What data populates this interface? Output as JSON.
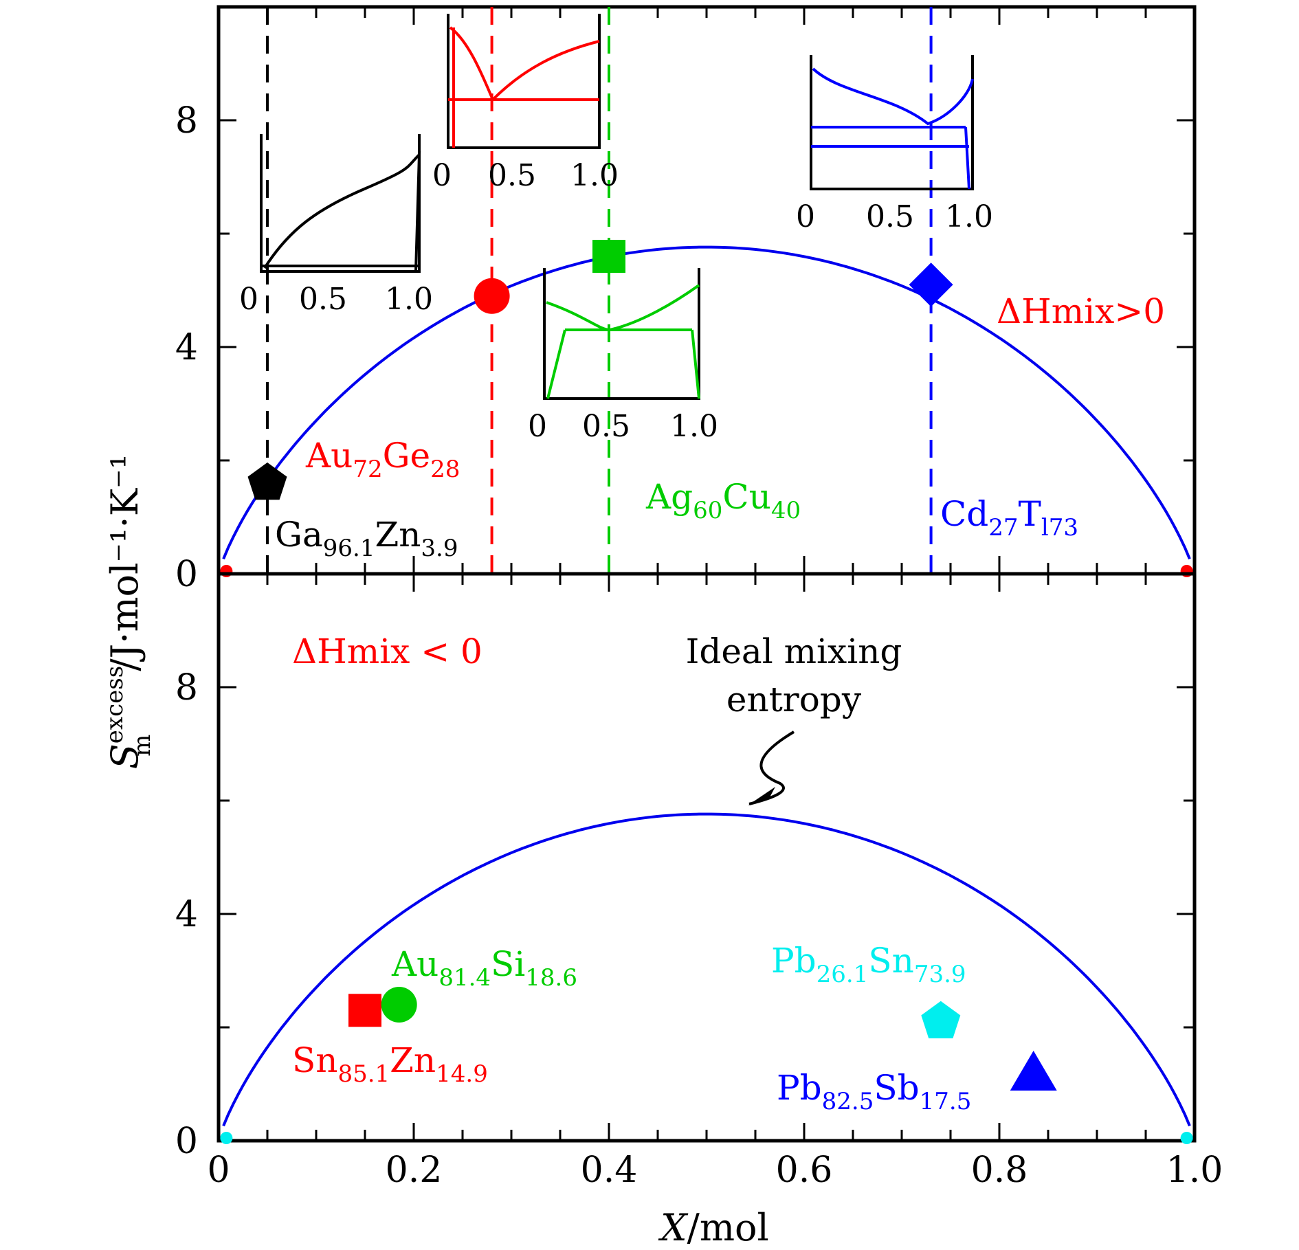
{
  "chart_data": [
    {
      "type": "scatter",
      "panel": "top",
      "xlim": [
        0,
        1.0
      ],
      "ylim": [
        0,
        10
      ],
      "yticks": [
        "0",
        "4",
        "8"
      ],
      "annotation": "ΔHmix>0",
      "curve": "ideal mixing entropy (blue)",
      "series": [
        {
          "name": "Au72Ge28",
          "label_main": "Au",
          "sub1": "72",
          "mid": "Ge",
          "sub2": "28",
          "color": "#ff0000",
          "marker": "circle",
          "x": 0.28,
          "y": 4.9,
          "vline": true
        },
        {
          "name": "Ga96.1Zn3.9",
          "label_main": "Ga",
          "sub1": "96.1",
          "mid": "Zn",
          "sub2": "3.9",
          "color": "#000000",
          "marker": "pentagon",
          "x": 0.05,
          "y": 1.6,
          "vline": true
        },
        {
          "name": "Ag60Cu40",
          "label_main": "Ag",
          "sub1": "60",
          "mid": "Cu",
          "sub2": "40",
          "color": "#00cc00",
          "marker": "square",
          "x": 0.4,
          "y": 5.6,
          "vline": true
        },
        {
          "name": "Cd27Tl73",
          "label_main": "Cd",
          "sub1": "27",
          "mid": "T",
          "sub2": "l73",
          "color": "#0000ff",
          "marker": "diamond",
          "x": 0.73,
          "y": 5.1,
          "vline": true
        }
      ],
      "insets": [
        {
          "name": "Ga-Zn phase diagram",
          "color": "#000000",
          "ticks": [
            "0",
            "0.5",
            "1.0"
          ]
        },
        {
          "name": "Au-Ge phase diagram",
          "color": "#ff0000",
          "ticks": [
            "0",
            "0.5",
            "1.0"
          ]
        },
        {
          "name": "Ag-Cu phase diagram",
          "color": "#00cc00",
          "ticks": [
            "0",
            "0.5",
            "1.0"
          ]
        },
        {
          "name": "Cd-Tl phase diagram",
          "color": "#0000ff",
          "ticks": [
            "0",
            "0.5",
            "1.0"
          ]
        }
      ]
    },
    {
      "type": "scatter",
      "panel": "bottom",
      "xlim": [
        0,
        1.0
      ],
      "ylim": [
        0,
        10
      ],
      "yticks": [
        "0",
        "4",
        "8"
      ],
      "xticks": [
        "0",
        "0.2",
        "0.4",
        "0.6",
        "0.8",
        "1.0"
      ],
      "annotation": "ΔHmix < 0",
      "curve_label_line1": "Ideal mixing",
      "curve_label_line2": "entropy",
      "series": [
        {
          "name": "Sn85.1Zn14.9",
          "label_main": "Sn",
          "sub1": "85.1",
          "mid": "Zn",
          "sub2": "14.9",
          "color": "#ff0000",
          "marker": "square",
          "x": 0.15,
          "y": 2.3
        },
        {
          "name": "Au81.4Si18.6",
          "label_main": "Au",
          "sub1": "81.4",
          "mid": "Si",
          "sub2": "18.6",
          "color": "#00cc00",
          "marker": "circle",
          "x": 0.185,
          "y": 2.4
        },
        {
          "name": "Pb26.1Sn73.9",
          "label_main": "Pb",
          "sub1": "26.1",
          "mid": "Sn",
          "sub2": "73.9",
          "color": "#00eeee",
          "marker": "pentagon",
          "x": 0.74,
          "y": 2.1
        },
        {
          "name": "Pb82.5Sb17.5",
          "label_main": "Pb",
          "sub1": "82.5",
          "mid": "Sb",
          "sub2": "17.5",
          "color": "#0000ff",
          "marker": "triangle",
          "x": 0.835,
          "y": 1.2
        }
      ]
    }
  ],
  "axes": {
    "ylabel_sym": "S",
    "ylabel_sup": "excess",
    "ylabel_sub": "m",
    "ylabel_unit": "/J·mol⁻¹·K⁻¹",
    "xlabel_sym": "X",
    "xlabel_unit": "/mol"
  },
  "colors": {
    "curve": "#0000ee",
    "red": "#ff0000",
    "green": "#00cc00",
    "blue": "#0000ff",
    "cyan": "#00eeee"
  }
}
